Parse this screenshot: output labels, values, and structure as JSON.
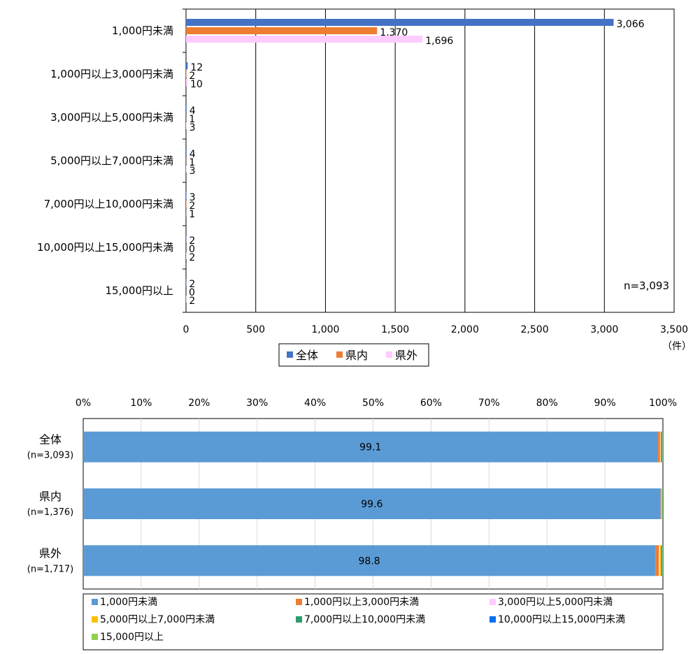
{
  "chart_data": [
    {
      "type": "bar",
      "orientation": "horizontal",
      "categories": [
        "1,000円未満",
        "1,000円以上3,000円未満",
        "3,000円以上5,000円未満",
        "5,000円以上7,000円未満",
        "7,000円以上10,000円未満",
        "10,000円以上15,000円未満",
        "15,000円以上"
      ],
      "series": [
        {
          "name": "全体",
          "color": "#4472C4",
          "values": [
            3066,
            12,
            4,
            4,
            3,
            2,
            2
          ],
          "labels": [
            "3,066",
            "12",
            "4",
            "4",
            "3",
            "2",
            "2"
          ]
        },
        {
          "name": "県内",
          "color": "#ED7D31",
          "values": [
            1370,
            2,
            1,
            1,
            2,
            0,
            0
          ],
          "labels": [
            "1,370",
            "2",
            "1",
            "1",
            "2",
            "0",
            "0"
          ]
        },
        {
          "name": "県外",
          "color": "#FFCCFF",
          "values": [
            1696,
            10,
            3,
            3,
            1,
            2,
            2
          ],
          "labels": [
            "1,696",
            "10",
            "3",
            "3",
            "1",
            "2",
            "2"
          ]
        }
      ],
      "xlim": [
        0,
        3500
      ],
      "xticks": [
        0,
        500,
        1000,
        1500,
        2000,
        2500,
        3000,
        3500
      ],
      "xtick_labels": [
        "0",
        "500",
        "1,000",
        "1,500",
        "2,000",
        "2,500",
        "3,000",
        "3,500"
      ],
      "unit_label": "（件）",
      "annotation": "n=3,093",
      "grid": true,
      "legend_position": "bottom"
    },
    {
      "type": "bar",
      "orientation": "horizontal",
      "stacked": "percent",
      "categories": [
        "全体",
        "県内",
        "県外"
      ],
      "category_notes": [
        "(n=3,093)",
        "(n=1,376)",
        "(n=1,717)"
      ],
      "series": [
        {
          "name": "1,000円未満",
          "color": "#5B9BD5",
          "values": [
            99.1,
            99.6,
            98.8
          ]
        },
        {
          "name": "1,000円以上3,000円未満",
          "color": "#ED7D31",
          "values": [
            0.4,
            0.1,
            0.6
          ]
        },
        {
          "name": "3,000円以上5,000円未満",
          "color": "#FFCCFF",
          "values": [
            0.1,
            0.1,
            0.2
          ]
        },
        {
          "name": "5,000円以上7,000円未満",
          "color": "#FFC000",
          "values": [
            0.1,
            0.1,
            0.2
          ]
        },
        {
          "name": "7,000円以上10,000円未満",
          "color": "#2E9C6A",
          "values": [
            0.1,
            0.1,
            0.1
          ]
        },
        {
          "name": "10,000円以上15,000円未満",
          "color": "#0070F0",
          "values": [
            0.1,
            0.0,
            0.1
          ]
        },
        {
          "name": "15,000円以上",
          "color": "#92D050",
          "values": [
            0.1,
            0.0,
            0.1
          ]
        }
      ],
      "data_labels": [
        "99.1",
        "99.6",
        "98.8"
      ],
      "xlim": [
        0,
        100
      ],
      "xtick_labels": [
        "0%",
        "10%",
        "20%",
        "30%",
        "40%",
        "50%",
        "60%",
        "70%",
        "80%",
        "90%",
        "100%"
      ],
      "grid": true,
      "legend_position": "bottom"
    }
  ]
}
